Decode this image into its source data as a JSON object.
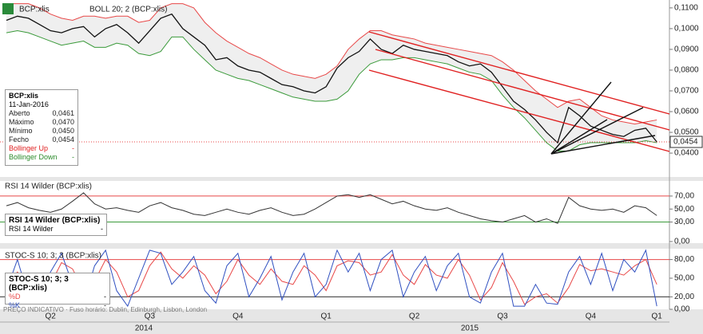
{
  "ui": {
    "symbol": "BCP:xlis",
    "study": "BOLL 20; 2 (BCP:xlis)",
    "footer": "PREÇO INDICATIVO · Fuso horário: Dublin, Edinburgh, Lisbon, London",
    "info": {
      "title": "BCP:xlis",
      "date": "11-Jan-2016",
      "rows": [
        [
          "Aberto",
          "0,0461"
        ],
        [
          "Máximo",
          "0,0470"
        ],
        [
          "Mínimo",
          "0,0450"
        ],
        [
          "Fecho",
          "0,0454"
        ],
        [
          "Bollinger Up",
          "-"
        ],
        [
          "Bollinger Down",
          "-"
        ]
      ]
    }
  },
  "chart_data": [
    {
      "type": "line",
      "series": [
        {
          "name": "BCP:xlis",
          "color": "#111111",
          "values": [
            0.104,
            0.106,
            0.105,
            0.102,
            0.099,
            0.098,
            0.1,
            0.101,
            0.096,
            0.1,
            0.102,
            0.098,
            0.093,
            0.099,
            0.105,
            0.107,
            0.1,
            0.096,
            0.092,
            0.085,
            0.086,
            0.082,
            0.08,
            0.079,
            0.076,
            0.073,
            0.072,
            0.07,
            0.069,
            0.072,
            0.081,
            0.086,
            0.089,
            0.095,
            0.09,
            0.088,
            0.092,
            0.09,
            0.089,
            0.088,
            0.087,
            0.084,
            0.082,
            0.083,
            0.079,
            0.072,
            0.065,
            0.061,
            0.056,
            0.05,
            0.045,
            0.062,
            0.058,
            0.053,
            0.051,
            0.049,
            0.048,
            0.051,
            0.052,
            0.0454
          ]
        },
        {
          "name": "Bollinger Up",
          "color": "#e84848",
          "values": [
            0.112,
            0.112,
            0.112,
            0.11,
            0.107,
            0.105,
            0.104,
            0.106,
            0.106,
            0.105,
            0.106,
            0.106,
            0.103,
            0.104,
            0.11,
            0.112,
            0.112,
            0.11,
            0.103,
            0.098,
            0.094,
            0.091,
            0.088,
            0.086,
            0.083,
            0.08,
            0.078,
            0.077,
            0.076,
            0.078,
            0.082,
            0.09,
            0.095,
            0.099,
            0.099,
            0.097,
            0.096,
            0.095,
            0.093,
            0.092,
            0.091,
            0.09,
            0.089,
            0.088,
            0.087,
            0.084,
            0.08,
            0.075,
            0.07,
            0.066,
            0.062,
            0.065,
            0.066,
            0.062,
            0.058,
            0.056,
            0.055,
            0.054,
            0.055,
            0.056
          ]
        },
        {
          "name": "Bollinger Down",
          "color": "#3a9a3a",
          "values": [
            0.098,
            0.099,
            0.098,
            0.096,
            0.094,
            0.092,
            0.093,
            0.094,
            0.091,
            0.091,
            0.093,
            0.092,
            0.088,
            0.087,
            0.089,
            0.096,
            0.096,
            0.09,
            0.085,
            0.08,
            0.078,
            0.076,
            0.075,
            0.073,
            0.071,
            0.069,
            0.067,
            0.066,
            0.065,
            0.065,
            0.066,
            0.07,
            0.078,
            0.083,
            0.085,
            0.085,
            0.086,
            0.086,
            0.085,
            0.084,
            0.083,
            0.081,
            0.079,
            0.078,
            0.075,
            0.068,
            0.062,
            0.057,
            0.051,
            0.045,
            0.041,
            0.041,
            0.044,
            0.045,
            0.045,
            0.045,
            0.045,
            0.045,
            0.046,
            0.045
          ]
        }
      ],
      "ylim": [
        0.0285,
        0.1138
      ],
      "yticks": [
        {
          "value": 0.11,
          "label": "0,1100"
        },
        {
          "value": 0.1,
          "label": "0,1000"
        },
        {
          "value": 0.09,
          "label": "0,0900"
        },
        {
          "value": 0.08,
          "label": "0,0800"
        },
        {
          "value": 0.07,
          "label": "0,0700"
        },
        {
          "value": 0.06,
          "label": "0,0600"
        },
        {
          "value": 0.05,
          "label": "0,0500"
        },
        {
          "value": 0.04,
          "label": "0,0400"
        }
      ],
      "last_label": {
        "value": 0.0454,
        "label": "0,0454"
      }
    },
    {
      "type": "line",
      "title": "RSI 14 Wilder (BCP:xlis)",
      "legend_title": "RSI 14 Wilder (BCP:xlis)",
      "series": [
        {
          "name": "RSI 14 Wilder",
          "color": "#333333",
          "value_label": "-",
          "values": [
            55,
            60,
            52,
            48,
            45,
            50,
            62,
            75,
            58,
            50,
            52,
            48,
            45,
            55,
            60,
            52,
            48,
            42,
            40,
            45,
            50,
            45,
            42,
            48,
            52,
            45,
            40,
            42,
            50,
            60,
            70,
            72,
            68,
            72,
            65,
            58,
            62,
            55,
            50,
            48,
            52,
            45,
            40,
            35,
            32,
            30,
            35,
            40,
            30,
            35,
            28,
            68,
            55,
            50,
            48,
            50,
            45,
            55,
            52,
            40
          ]
        }
      ],
      "ylim": [
        0,
        92
      ],
      "yticks": [
        {
          "value": 70,
          "label": "70,00"
        },
        {
          "value": 50,
          "label": "50,00"
        },
        {
          "value": 30,
          "label": "30,00"
        },
        {
          "value": 0,
          "label": "0,00"
        }
      ],
      "levels": [
        {
          "value": 70,
          "color": "#e84848"
        },
        {
          "value": 30,
          "color": "#3a9a3a"
        }
      ]
    },
    {
      "type": "line",
      "title": "STOC-S 10; 3; 3 (BCP:xlis)",
      "legend_title": "STOC-S 10; 3; 3 (BCP:xlis)",
      "series": [
        {
          "name": "%D",
          "color": "#e84848",
          "value_label": "-",
          "values": [
            40,
            60,
            40,
            20,
            40,
            75,
            65,
            30,
            45,
            80,
            60,
            20,
            30,
            70,
            92,
            65,
            50,
            70,
            55,
            25,
            45,
            80,
            55,
            40,
            65,
            45,
            40,
            70,
            55,
            30,
            70,
            78,
            75,
            55,
            60,
            88,
            55,
            40,
            72,
            55,
            50,
            80,
            55,
            15,
            35,
            75,
            45,
            8,
            20,
            25,
            10,
            35,
            72,
            62,
            65,
            60,
            55,
            70,
            80,
            40
          ]
        },
        {
          "name": "%K",
          "color": "#3050c0",
          "value_label": "-",
          "values": [
            30,
            80,
            20,
            10,
            60,
            90,
            40,
            10,
            70,
            95,
            30,
            5,
            50,
            95,
            90,
            40,
            60,
            85,
            30,
            10,
            70,
            90,
            20,
            50,
            85,
            15,
            60,
            90,
            20,
            40,
            95,
            60,
            90,
            30,
            80,
            95,
            20,
            60,
            85,
            30,
            70,
            90,
            20,
            10,
            60,
            90,
            5,
            5,
            40,
            10,
            8,
            60,
            85,
            40,
            90,
            30,
            80,
            60,
            95,
            5
          ]
        }
      ],
      "ylim": [
        0,
        100
      ],
      "yticks": [
        {
          "value": 80,
          "label": "80,00"
        },
        {
          "value": 50,
          "label": "50,00"
        },
        {
          "value": 20,
          "label": "20,00"
        },
        {
          "value": 0,
          "label": "0,00"
        }
      ],
      "levels": [
        {
          "value": 80,
          "color": "#e84848"
        },
        {
          "value": 20,
          "color": "#333333"
        }
      ],
      "categories": [
        null,
        null,
        null,
        null,
        "Q2",
        null,
        null,
        null,
        null,
        null,
        null,
        null,
        null,
        "Q3",
        null,
        null,
        null,
        null,
        null,
        null,
        null,
        "Q4",
        null,
        null,
        null,
        null,
        null,
        null,
        null,
        "Q1",
        null,
        null,
        null,
        null,
        null,
        null,
        null,
        "Q2",
        null,
        null,
        null,
        null,
        null,
        null,
        null,
        "Q3",
        null,
        null,
        null,
        null,
        null,
        null,
        null,
        "Q4",
        null,
        null,
        null,
        null,
        null,
        "Q1"
      ],
      "years": [
        "2014",
        "2015"
      ]
    }
  ]
}
